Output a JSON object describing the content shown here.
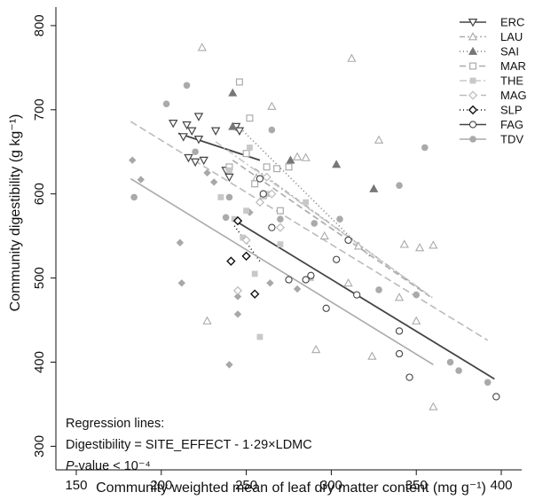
{
  "chart_data": {
    "type": "scatter",
    "xlabel": "Community weighted mean of leaf dry matter content (mg g⁻¹)",
    "ylabel": "Community digestibility (g kg⁻¹)",
    "xlim": [
      138,
      412
    ],
    "ylim": [
      272,
      822
    ],
    "xticks": [
      150,
      200,
      250,
      300,
      350,
      400
    ],
    "yticks": [
      300,
      400,
      500,
      600,
      700,
      800
    ],
    "grid": false,
    "legend_position": "top-right",
    "annotation": {
      "line1": "Regression lines:",
      "line2": "Digestibility = SITE_EFFECT - 1·29×LDMC",
      "line3_italic": "P",
      "line3_rest": "-value < 10⁻⁴"
    },
    "series": [
      {
        "name": "ERC",
        "marker": "triangle-down-open",
        "color": "#444444",
        "dash": "none",
        "points": [
          [
            207,
            684
          ],
          [
            213,
            668
          ],
          [
            215,
            682
          ],
          [
            218,
            675
          ],
          [
            222,
            692
          ],
          [
            216,
            643
          ],
          [
            220,
            638
          ],
          [
            225,
            640
          ],
          [
            222,
            665
          ],
          [
            232,
            675
          ],
          [
            238,
            628
          ],
          [
            240,
            620
          ],
          [
            244,
            680
          ],
          [
            246,
            675
          ]
        ],
        "line": [
          [
            210,
            672
          ],
          [
            258,
            640
          ]
        ]
      },
      {
        "name": "LAU",
        "marker": "triangle-up-open",
        "color": "#aaaaaa",
        "dash": "6,3,2,3",
        "points": [
          [
            224,
            774
          ],
          [
            227,
            449
          ],
          [
            256,
            619
          ],
          [
            265,
            704
          ],
          [
            280,
            644
          ],
          [
            285,
            643
          ],
          [
            291,
            415
          ],
          [
            296,
            550
          ],
          [
            310,
            494
          ],
          [
            312,
            761
          ],
          [
            316,
            538
          ],
          [
            324,
            407
          ],
          [
            328,
            664
          ],
          [
            340,
            477
          ],
          [
            343,
            540
          ],
          [
            350,
            449
          ],
          [
            352,
            536
          ],
          [
            360,
            539
          ],
          [
            360,
            347
          ]
        ],
        "line": [
          [
            255,
            630
          ],
          [
            355,
            483
          ]
        ]
      },
      {
        "name": "SAI",
        "marker": "triangle-up-filled",
        "color": "#777777",
        "dash": "1,3",
        "points": [
          [
            242,
            720
          ],
          [
            242,
            680
          ],
          [
            276,
            640
          ],
          [
            303,
            635
          ],
          [
            325,
            606
          ]
        ],
        "line": [
          [
            248,
            675
          ],
          [
            323,
            525
          ]
        ]
      },
      {
        "name": "MAR",
        "marker": "square-open",
        "color": "#aaaaaa",
        "dash": "7,4",
        "points": [
          [
            240,
            632
          ],
          [
            246,
            733
          ],
          [
            250,
            648
          ],
          [
            252,
            690
          ],
          [
            255,
            612
          ],
          [
            260,
            598
          ],
          [
            262,
            632
          ],
          [
            268,
            630
          ],
          [
            275,
            632
          ],
          [
            270,
            580
          ]
        ],
        "line": [
          [
            242,
            640
          ],
          [
            358,
            478
          ]
        ]
      },
      {
        "name": "THE",
        "marker": "square-filled",
        "color": "#c8c8c8",
        "dash": "8,3,2,3",
        "points": [
          [
            235,
            596
          ],
          [
            240,
            628
          ],
          [
            243,
            570
          ],
          [
            248,
            548
          ],
          [
            250,
            580
          ],
          [
            252,
            655
          ],
          [
            255,
            505
          ],
          [
            258,
            430
          ],
          [
            262,
            600
          ],
          [
            270,
            540
          ],
          [
            285,
            590
          ],
          [
            288,
            500
          ]
        ],
        "line": [
          [
            232,
            662
          ],
          [
            360,
            476
          ]
        ]
      },
      {
        "name": "MAG",
        "marker": "diamond-open",
        "color": "#bbbbbb",
        "dash": "8,4",
        "points": [
          [
            245,
            485
          ],
          [
            250,
            545
          ],
          [
            258,
            590
          ],
          [
            262,
            620
          ],
          [
            265,
            600
          ],
          [
            270,
            560
          ]
        ],
        "line": [
          [
            182,
            686
          ],
          [
            392,
            426
          ]
        ]
      },
      {
        "name": "SLP",
        "marker": "diamond-open-black",
        "color": "#111111",
        "dash": "1,3",
        "points": [
          [
            241,
            520
          ],
          [
            245,
            568
          ],
          [
            250,
            526
          ],
          [
            255,
            481
          ]
        ],
        "line": [
          [
            243,
            562
          ],
          [
            258,
            520
          ]
        ]
      },
      {
        "name": "FAG",
        "marker": "circle-open",
        "color": "#444444",
        "dash": "none",
        "points": [
          [
            258,
            618
          ],
          [
            260,
            600
          ],
          [
            265,
            560
          ],
          [
            275,
            498
          ],
          [
            285,
            498
          ],
          [
            288,
            503
          ],
          [
            297,
            464
          ],
          [
            303,
            522
          ],
          [
            310,
            545
          ],
          [
            315,
            480
          ],
          [
            340,
            437
          ],
          [
            340,
            410
          ],
          [
            346,
            382
          ],
          [
            397,
            359
          ]
        ],
        "line": [
          [
            246,
            565
          ],
          [
            396,
            380
          ]
        ]
      },
      {
        "name": "TDV",
        "marker": "circle-filled",
        "color": "#aaaaaa",
        "dash": "none",
        "points": [
          [
            184,
            596
          ],
          [
            203,
            707
          ],
          [
            215,
            729
          ],
          [
            220,
            650
          ],
          [
            238,
            572
          ],
          [
            240,
            596
          ],
          [
            265,
            676
          ],
          [
            270,
            570
          ],
          [
            290,
            565
          ],
          [
            305,
            570
          ],
          [
            328,
            486
          ],
          [
            340,
            610
          ],
          [
            350,
            480
          ],
          [
            355,
            655
          ],
          [
            370,
            400
          ],
          [
            375,
            390
          ],
          [
            392,
            376
          ]
        ],
        "line": [
          [
            182,
            618
          ],
          [
            360,
            397
          ]
        ]
      }
    ],
    "extra_points": {
      "diamond-filled-gray": [
        [
          183,
          640
        ],
        [
          188,
          617
        ],
        [
          211,
          542
        ],
        [
          212,
          494
        ],
        [
          227,
          625
        ],
        [
          231,
          614
        ],
        [
          240,
          397
        ],
        [
          245,
          478
        ],
        [
          245,
          457
        ],
        [
          252,
          578
        ],
        [
          264,
          494
        ],
        [
          280,
          487
        ]
      ]
    }
  }
}
